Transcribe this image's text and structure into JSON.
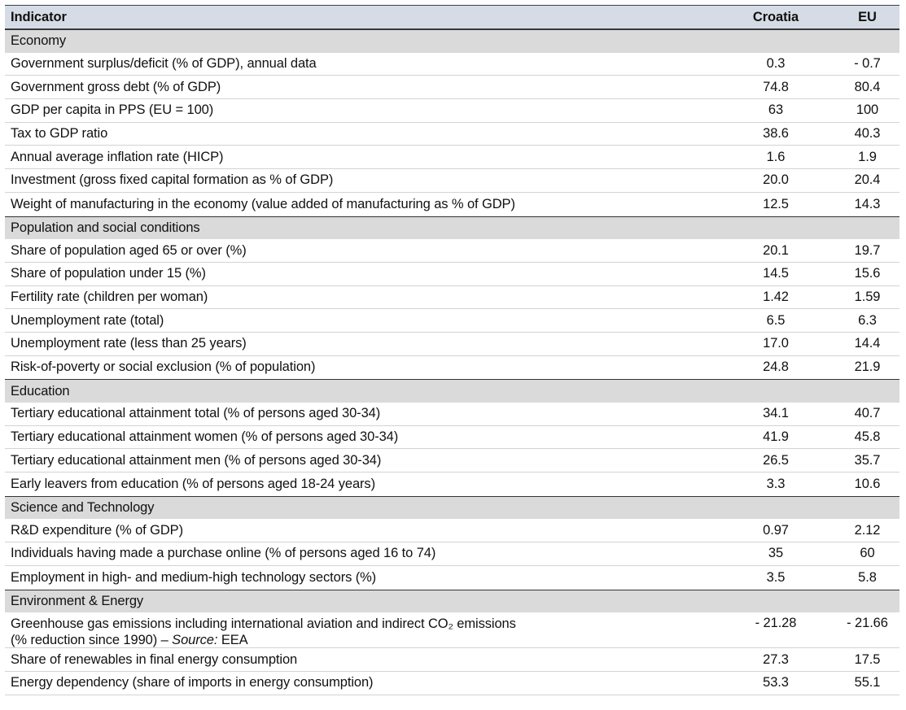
{
  "header": {
    "indicator": "Indicator",
    "croatia": "Croatia",
    "eu": "EU"
  },
  "sections": [
    {
      "title": "Economy",
      "rows": [
        {
          "label": "Government surplus/deficit (% of GDP), annual data",
          "croatia": "0.3",
          "eu": "- 0.7"
        },
        {
          "label": "Government gross debt (% of GDP)",
          "croatia": "74.8",
          "eu": "80.4"
        },
        {
          "label": "GDP per capita in PPS (EU = 100)",
          "croatia": "63",
          "eu": "100"
        },
        {
          "label": "Tax to GDP ratio",
          "croatia": "38.6",
          "eu": "40.3"
        },
        {
          "label": "Annual average inflation rate (HICP)",
          "croatia": "1.6",
          "eu": "1.9"
        },
        {
          "label": "Investment (gross fixed capital formation as % of GDP)",
          "croatia": "20.0",
          "eu": "20.4"
        },
        {
          "label": "Weight of manufacturing in the economy (value added of manufacturing  as % of GDP)",
          "croatia": "12.5",
          "eu": "14.3"
        }
      ]
    },
    {
      "title": "Population and social  conditions",
      "rows": [
        {
          "label": "Share of population aged 65 or over (%)",
          "croatia": "20.1",
          "eu": "19.7"
        },
        {
          "label": "Share of population under 15 (%)",
          "croatia": "14.5",
          "eu": "15.6"
        },
        {
          "label": "Fertility rate (children per woman)",
          "croatia": "1.42",
          "eu": "1.59"
        },
        {
          "label": "Unemployment rate (total)",
          "croatia": "6.5",
          "eu": "6.3"
        },
        {
          "label": "Unemployment rate (less than 25 years)",
          "croatia": "17.0",
          "eu": "14.4"
        },
        {
          "label": "Risk-of-poverty or social exclusion  (% of population)",
          "croatia": "24.8",
          "eu": "21.9"
        }
      ]
    },
    {
      "title": "Education",
      "rows": [
        {
          "label": "Tertiary educational attainment  total (% of persons aged 30-34)",
          "croatia": "34.1",
          "eu": "40.7"
        },
        {
          "label": "Tertiary educational attainment women (% of persons aged 30-34)",
          "croatia": "41.9",
          "eu": "45.8"
        },
        {
          "label": "Tertiary educational attainment men (% of persons aged 30-34)",
          "croatia": "26.5",
          "eu": "35.7"
        },
        {
          "label": "Early leavers from education (% of persons aged 18-24 years)",
          "croatia": "3.3",
          "eu": "10.6"
        }
      ]
    },
    {
      "title": "Science and Technology",
      "rows": [
        {
          "label": "R&D expenditure (% of GDP)",
          "croatia": "0.97",
          "eu": "2.12"
        },
        {
          "label": "Individuals having made a purchase online (% of persons aged 16 to 74)",
          "croatia": "35",
          "eu": "60"
        },
        {
          "label": "Employment in high- and medium-high technology sectors (%)",
          "croatia": "3.5",
          "eu": "5.8"
        }
      ]
    },
    {
      "title": "Environment & Energy",
      "rows": [
        {
          "label_line1": "Greenhouse gas emissions including international aviation and indirect CO₂ emissions",
          "label_line2_pre": "(% reduction since 1990) – ",
          "label_line2_em": "Source:",
          "label_line2_post": " EEA",
          "croatia": "- 21.28",
          "eu": "- 21.66"
        },
        {
          "label": "Share of renewables in final energy consumption",
          "croatia": "27.3",
          "eu": "17.5"
        },
        {
          "label": "Energy dependency (share of imports in energy consumption)",
          "croatia": "53.3",
          "eu": "55.1"
        }
      ]
    }
  ]
}
